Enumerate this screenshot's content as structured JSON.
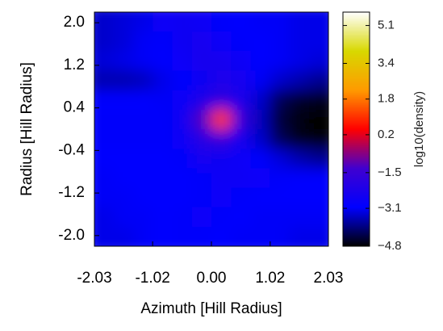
{
  "chart_data": {
    "type": "heatmap",
    "x_label": "Azimuth [Hill Radius]",
    "y_label": "Radius [Hill Radius]",
    "colorbar_label": "log10(density)",
    "x": [
      -1.86,
      -1.52,
      -1.18,
      -0.85,
      -0.51,
      -0.17,
      0.17,
      0.51,
      0.85,
      1.18,
      1.52,
      1.86
    ],
    "y": [
      1.86,
      1.52,
      1.18,
      0.85,
      0.51,
      0.17,
      -0.17,
      -0.51,
      -0.85,
      -1.18,
      -1.52,
      -1.86
    ],
    "z": [
      [
        -3.4,
        -3.3,
        -3.2,
        -2.8,
        -2.6,
        -2.7,
        -2.9,
        -3.0,
        -3.1,
        -3.1,
        -3.2,
        -3.2
      ],
      [
        -3.4,
        -3.3,
        -3.1,
        -2.9,
        -2.6,
        -2.5,
        -2.8,
        -2.9,
        -3.0,
        -3.1,
        -3.2,
        -3.2
      ],
      [
        -3.3,
        -3.2,
        -3.1,
        -3.0,
        -2.8,
        -2.4,
        -2.5,
        -2.7,
        -3.0,
        -3.1,
        -3.2,
        -3.3
      ],
      [
        -3.6,
        -3.6,
        -3.5,
        -3.2,
        -3.0,
        -2.6,
        -2.3,
        -2.5,
        -3.1,
        -3.4,
        -3.6,
        -3.8
      ],
      [
        -3.0,
        -3.0,
        -3.0,
        -3.1,
        -2.8,
        -2.2,
        -1.8,
        -2.3,
        -3.4,
        -4.2,
        -4.5,
        -4.6
      ],
      [
        -2.9,
        -2.9,
        -2.9,
        -2.9,
        -2.6,
        -1.2,
        1.0,
        -1.6,
        -3.5,
        -4.4,
        -4.7,
        -4.8
      ],
      [
        -2.9,
        -2.9,
        -2.9,
        -2.9,
        -2.7,
        -2.0,
        -1.6,
        -2.4,
        -3.4,
        -4.2,
        -4.6,
        -4.7
      ],
      [
        -3.0,
        -3.0,
        -3.0,
        -3.0,
        -2.9,
        -2.5,
        -2.6,
        -2.8,
        -3.0,
        -3.3,
        -3.6,
        -3.8
      ],
      [
        -3.1,
        -3.0,
        -3.0,
        -3.0,
        -3.0,
        -2.9,
        -2.7,
        -2.7,
        -2.8,
        -2.9,
        -3.0,
        -3.0
      ],
      [
        -3.1,
        -3.1,
        -3.0,
        -3.0,
        -3.0,
        -2.9,
        -2.8,
        -2.9,
        -3.0,
        -3.0,
        -3.0,
        -3.0
      ],
      [
        -3.2,
        -3.1,
        -3.1,
        -3.0,
        -2.9,
        -2.8,
        -2.9,
        -3.0,
        -3.1,
        -3.1,
        -3.1,
        -3.1
      ],
      [
        -3.2,
        -3.2,
        -3.1,
        -3.0,
        -2.9,
        -2.9,
        -3.0,
        -3.1,
        -3.1,
        -3.1,
        -3.2,
        -3.2
      ]
    ],
    "xlim": [
      -2.03,
      2.03
    ],
    "ylim": [
      -2.2,
      2.2
    ],
    "xticks": [
      -2.03,
      -1.02,
      {
        "value": 0,
        "label": "0.00"
      },
      1.02,
      2.03
    ],
    "yticks": [
      {
        "value": 2,
        "label": "2.0"
      },
      1.2,
      0.4,
      -0.4,
      -1.2,
      {
        "value": -2,
        "label": "-2.0"
      }
    ],
    "clim": [
      -4.8,
      5.7
    ],
    "cticks": [
      5.1,
      3.4,
      1.8,
      0.2,
      {
        "value": -1.5,
        "label": "−1.5"
      },
      {
        "value": -3.1,
        "label": "−3.1"
      },
      {
        "value": -4.8,
        "label": "−4.8"
      }
    ],
    "colormap": [
      "#000000",
      "#0000ff",
      "#4000d0",
      "#ff0000",
      "#ff9a00",
      "#d8d800",
      "#ffffff"
    ]
  }
}
